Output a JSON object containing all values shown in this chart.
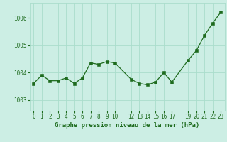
{
  "x": [
    0,
    1,
    2,
    3,
    4,
    5,
    6,
    7,
    8,
    9,
    10,
    12,
    13,
    14,
    15,
    16,
    17,
    19,
    20,
    21,
    22,
    23
  ],
  "y": [
    1003.6,
    1003.9,
    1003.7,
    1003.7,
    1003.8,
    1003.6,
    1003.8,
    1004.35,
    1004.3,
    1004.4,
    1004.35,
    1003.75,
    1003.6,
    1003.55,
    1003.65,
    1004.0,
    1003.65,
    1004.45,
    1004.8,
    1005.35,
    1005.8,
    1006.2
  ],
  "xtick_positions": [
    0,
    1,
    2,
    3,
    4,
    5,
    6,
    7,
    8,
    9,
    10,
    12,
    13,
    14,
    15,
    16,
    17,
    19,
    20,
    21,
    22,
    23
  ],
  "xtick_labels": [
    "0",
    "1",
    "2",
    "3",
    "4",
    "5",
    "6",
    "7",
    "8",
    "9",
    "10",
    "12",
    "13",
    "14",
    "15",
    "16",
    "17",
    "19",
    "20",
    "21",
    "22",
    "23"
  ],
  "yticks": [
    1003,
    1004,
    1005,
    1006
  ],
  "ylim": [
    1002.6,
    1006.55
  ],
  "xlim": [
    -0.5,
    23.5
  ],
  "line_color": "#1e6b1e",
  "marker_color": "#1e6b1e",
  "bg_color": "#cceee4",
  "grid_color": "#aaddcc",
  "xlabel": "Graphe pression niveau de la mer (hPa)",
  "xlabel_color": "#1e6b1e",
  "tick_color": "#1e6b1e",
  "tick_fontsize": 5.5,
  "xlabel_fontsize": 6.5
}
